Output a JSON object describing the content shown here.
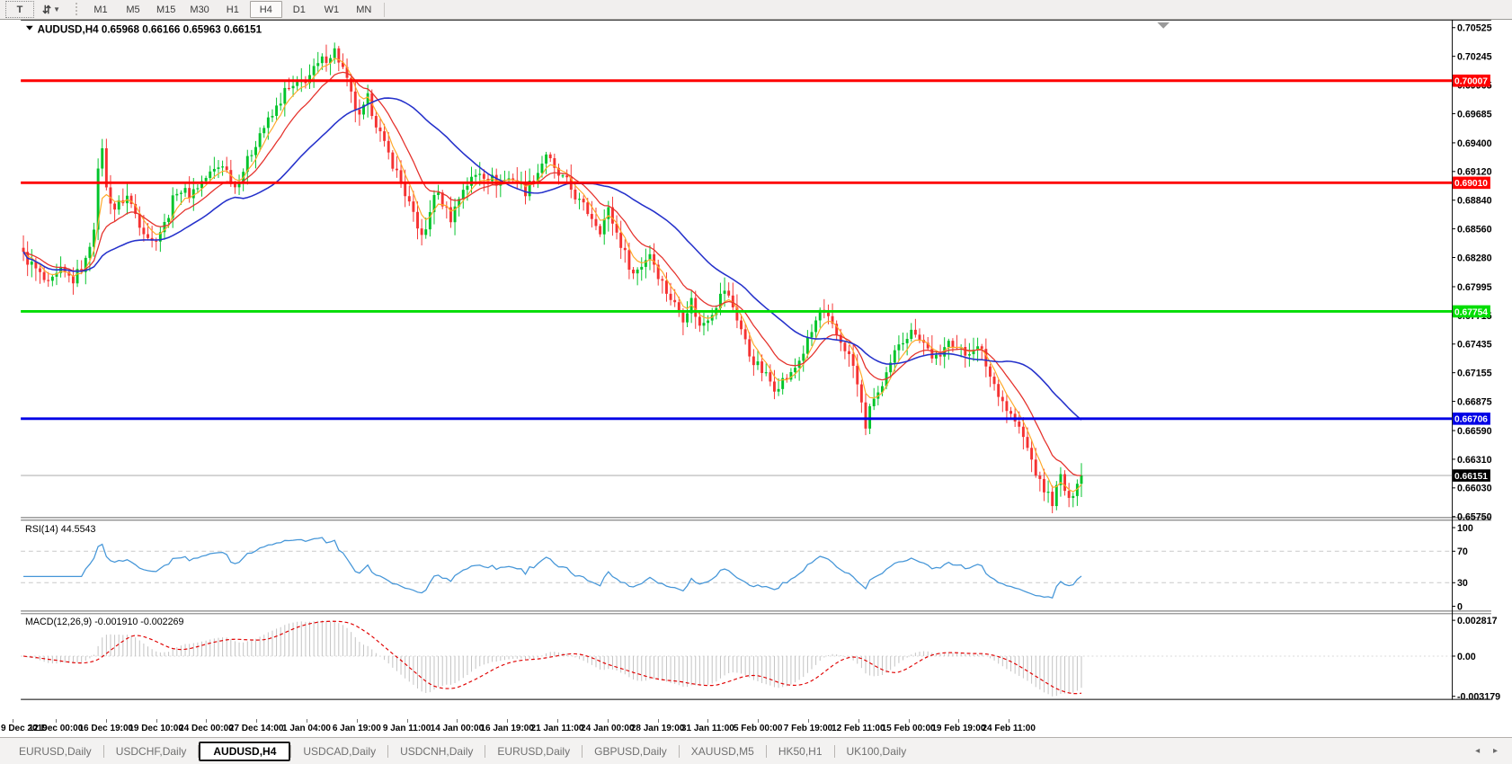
{
  "toolbar": {
    "text_tool_glyph": "T",
    "timeframes": [
      "M1",
      "M5",
      "M15",
      "M30",
      "H1",
      "H4",
      "D1",
      "W1",
      "MN"
    ],
    "active_timeframe": "H4"
  },
  "chart_data": {
    "type": "candlestick",
    "symbol": "AUDUSD",
    "timeframe": "H4",
    "title_text": "AUDUSD,H4 0.65968 0.66166 0.65963 0.66151",
    "ohlc": {
      "open": 0.65968,
      "high": 0.66166,
      "low": 0.65963,
      "close": 0.66151
    },
    "y_axis": {
      "min": 0.6575,
      "max": 0.70525,
      "tick_labels": [
        "0.70525",
        "0.70245",
        "0.69965",
        "0.69685",
        "0.69400",
        "0.69120",
        "0.68840",
        "0.68560",
        "0.68280",
        "0.67995",
        "0.67715",
        "0.67435",
        "0.67155",
        "0.66875",
        "0.66590",
        "0.66310",
        "0.66030",
        "0.65750"
      ]
    },
    "x_axis": {
      "labels": [
        "9 Dec 2019",
        "12 Dec 00:00",
        "16 Dec 19:00",
        "19 Dec 10:00",
        "24 Dec 00:00",
        "27 Dec 14:00",
        "1 Jan 04:00",
        "6 Jan 19:00",
        "9 Jan 11:00",
        "14 Jan 00:00",
        "16 Jan 19:00",
        "21 Jan 11:00",
        "24 Jan 00:00",
        "28 Jan 19:00",
        "31 Jan 11:00",
        "5 Feb 00:00",
        "7 Feb 19:00",
        "12 Feb 11:00",
        "15 Feb 00:00",
        "19 Feb 19:00",
        "24 Feb 11:00"
      ]
    },
    "horizontal_lines": [
      {
        "value": 0.70007,
        "badge": "0.70007",
        "color": "#fe0000"
      },
      {
        "value": 0.6901,
        "badge": "0.69010",
        "color": "#fe0000"
      },
      {
        "value": 0.67754,
        "badge": "0.67754",
        "color": "#00dd02"
      },
      {
        "value": 0.66706,
        "badge": "0.66706",
        "color": "#0000e6"
      }
    ],
    "current_bid": {
      "value": 0.66151,
      "badge": "0.66151",
      "badge_bg": "#000000",
      "line_color": "#ababab"
    },
    "candles": {
      "count": 256,
      "up_color": "#00c42a",
      "down_color": "#f53232",
      "close_waypoints": [
        [
          0,
          0.683
        ],
        [
          3,
          0.6816
        ],
        [
          6,
          0.68
        ],
        [
          9,
          0.6814
        ],
        [
          12,
          0.6806
        ],
        [
          15,
          0.6824
        ],
        [
          17,
          0.686
        ],
        [
          18,
          0.691
        ],
        [
          19,
          0.6938
        ],
        [
          20,
          0.6894
        ],
        [
          22,
          0.6876
        ],
        [
          25,
          0.6888
        ],
        [
          28,
          0.6862
        ],
        [
          31,
          0.6843
        ],
        [
          34,
          0.686
        ],
        [
          37,
          0.6895
        ],
        [
          40,
          0.689
        ],
        [
          44,
          0.6906
        ],
        [
          48,
          0.692
        ],
        [
          51,
          0.6897
        ],
        [
          54,
          0.6922
        ],
        [
          57,
          0.695
        ],
        [
          60,
          0.6966
        ],
        [
          63,
          0.699
        ],
        [
          66,
          0.6995
        ],
        [
          69,
          0.7006
        ],
        [
          72,
          0.702
        ],
        [
          75,
          0.703
        ],
        [
          77,
          0.7012
        ],
        [
          79,
          0.6986
        ],
        [
          81,
          0.6963
        ],
        [
          83,
          0.6983
        ],
        [
          85,
          0.696
        ],
        [
          87,
          0.6937
        ],
        [
          89,
          0.692
        ],
        [
          91,
          0.6901
        ],
        [
          93,
          0.688
        ],
        [
          95,
          0.6855
        ],
        [
          97,
          0.6852
        ],
        [
          99,
          0.6892
        ],
        [
          101,
          0.6882
        ],
        [
          103,
          0.6867
        ],
        [
          106,
          0.6896
        ],
        [
          110,
          0.6912
        ],
        [
          114,
          0.6902
        ],
        [
          118,
          0.6906
        ],
        [
          121,
          0.6893
        ],
        [
          124,
          0.6912
        ],
        [
          126,
          0.693
        ],
        [
          128,
          0.6912
        ],
        [
          131,
          0.6901
        ],
        [
          134,
          0.6882
        ],
        [
          137,
          0.6868
        ],
        [
          139,
          0.6856
        ],
        [
          141,
          0.6874
        ],
        [
          143,
          0.6852
        ],
        [
          145,
          0.6831
        ],
        [
          147,
          0.6812
        ],
        [
          149,
          0.6821
        ],
        [
          151,
          0.6833
        ],
        [
          153,
          0.6812
        ],
        [
          155,
          0.6795
        ],
        [
          157,
          0.6782
        ],
        [
          159,
          0.677
        ],
        [
          161,
          0.6786
        ],
        [
          163,
          0.676
        ],
        [
          166,
          0.6776
        ],
        [
          169,
          0.6797
        ],
        [
          171,
          0.678
        ],
        [
          173,
          0.6758
        ],
        [
          175,
          0.6733
        ],
        [
          177,
          0.6722
        ],
        [
          179,
          0.6712
        ],
        [
          181,
          0.6702
        ],
        [
          183,
          0.6708
        ],
        [
          185,
          0.6713
        ],
        [
          188,
          0.6736
        ],
        [
          190,
          0.6755
        ],
        [
          192,
          0.6776
        ],
        [
          194,
          0.6766
        ],
        [
          196,
          0.6752
        ],
        [
          198,
          0.674
        ],
        [
          200,
          0.6722
        ],
        [
          202,
          0.6684
        ],
        [
          203,
          0.6664
        ],
        [
          205,
          0.6692
        ],
        [
          207,
          0.67
        ],
        [
          209,
          0.6722
        ],
        [
          211,
          0.6746
        ],
        [
          213,
          0.6752
        ],
        [
          215,
          0.6757
        ],
        [
          217,
          0.6745
        ],
        [
          219,
          0.6732
        ],
        [
          221,
          0.6727
        ],
        [
          223,
          0.6751
        ],
        [
          225,
          0.674
        ],
        [
          227,
          0.6733
        ],
        [
          229,
          0.6742
        ],
        [
          231,
          0.6735
        ],
        [
          233,
          0.6712
        ],
        [
          235,
          0.6697
        ],
        [
          237,
          0.668
        ],
        [
          239,
          0.6668
        ],
        [
          241,
          0.6652
        ],
        [
          243,
          0.663
        ],
        [
          245,
          0.6607
        ],
        [
          247,
          0.6596
        ],
        [
          248,
          0.659
        ],
        [
          250,
          0.6614
        ],
        [
          252,
          0.6588
        ],
        [
          253,
          0.6596
        ],
        [
          254,
          0.6608
        ],
        [
          255,
          0.66151
        ]
      ]
    },
    "moving_averages": [
      {
        "name": "fast-ma",
        "type": "ema",
        "period": 5,
        "color": "#ffa929",
        "width": 1.2
      },
      {
        "name": "mid-ma",
        "type": "ema",
        "period": 13,
        "color": "#e5312b",
        "width": 1.3
      },
      {
        "name": "slow-ma",
        "type": "sma",
        "period": 34,
        "color": "#2531cb",
        "width": 1.6
      }
    ],
    "indicators": {
      "rsi": {
        "label": "RSI(14) 44.5543",
        "period": 14,
        "value": 44.5543,
        "levels": [
          100,
          70,
          30,
          0
        ],
        "level_labels": [
          "100",
          "70",
          "30",
          "0"
        ],
        "line_color": "#4596d8",
        "level_line_color": "#c9c9c9"
      },
      "macd": {
        "label": "MACD(12,26,9) -0.001910 -0.002269",
        "fast": 12,
        "slow": 26,
        "signal_period": 9,
        "macd_value": -0.00191,
        "signal_value": -0.002269,
        "axis_labels": [
          "0.002817",
          "0.00",
          "-0.003179"
        ],
        "axis_max": 0.002817,
        "axis_min": -0.003179,
        "histogram_color": "#c2c2c2",
        "signal_color": "#e00000"
      }
    }
  },
  "tabs": {
    "items": [
      "EURUSD,Daily",
      "USDCHF,Daily",
      "AUDUSD,H4",
      "USDCAD,Daily",
      "USDCNH,Daily",
      "EURUSD,Daily",
      "GBPUSD,Daily",
      "XAUUSD,M5",
      "HK50,H1",
      "UK100,Daily"
    ],
    "active_index": 2,
    "scroll_left_glyph": "◂",
    "scroll_right_glyph": "▸"
  }
}
